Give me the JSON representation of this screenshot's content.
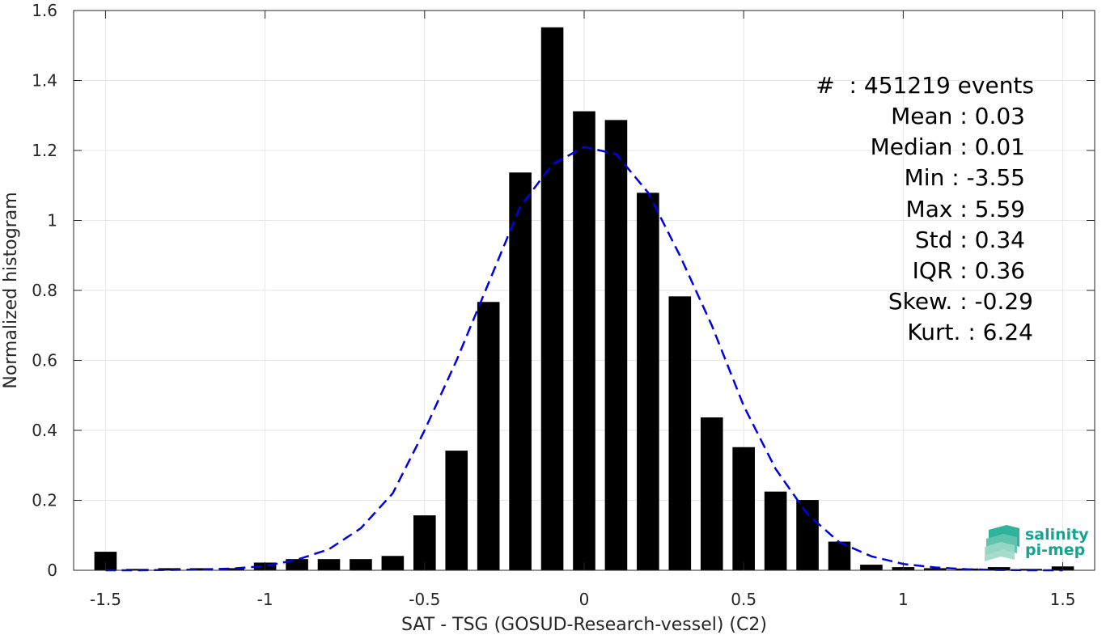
{
  "chart_data": {
    "type": "bar",
    "xlabel": "SAT - TSG (GOSUD-Research-vessel) (C2)",
    "ylabel": "Normalized histogram",
    "xlim": [
      -1.6,
      1.6
    ],
    "ylim": [
      0,
      1.6
    ],
    "grid": true,
    "x_ticks": [
      -1.5,
      -1,
      -0.5,
      0,
      0.5,
      1,
      1.5
    ],
    "x_tick_labels": [
      "-1.5",
      "-1",
      "-0.5",
      "0",
      "0.5",
      "1",
      "1.5"
    ],
    "y_ticks": [
      0,
      0.2,
      0.4,
      0.6,
      0.8,
      1,
      1.2,
      1.4,
      1.6
    ],
    "y_tick_labels": [
      "0",
      "0.2",
      "0.4",
      "0.6",
      "0.8",
      "1",
      "1.2",
      "1.4",
      "1.6"
    ],
    "bar_width": 0.07,
    "x": [
      -1.5,
      -1.4,
      -1.3,
      -1.2,
      -1.1,
      -1.0,
      -0.9,
      -0.8,
      -0.7,
      -0.6,
      -0.5,
      -0.4,
      -0.3,
      -0.2,
      -0.1,
      0.0,
      0.1,
      0.2,
      0.3,
      0.4,
      0.5,
      0.6,
      0.7,
      0.8,
      0.9,
      1.0,
      1.1,
      1.2,
      1.3,
      1.4,
      1.5
    ],
    "values": [
      0.053,
      0.004,
      0.006,
      0.006,
      0.006,
      0.022,
      0.032,
      0.032,
      0.032,
      0.041,
      0.157,
      0.342,
      0.767,
      1.137,
      1.552,
      1.312,
      1.287,
      1.079,
      0.783,
      0.437,
      0.352,
      0.225,
      0.201,
      0.082,
      0.016,
      0.009,
      0.006,
      0.005,
      0.009,
      0.004,
      0.011
    ],
    "bar_color": "#000000",
    "fit_curve": {
      "style": "dashed",
      "color": "#0000e6",
      "x": [
        -1.5,
        -1.4,
        -1.3,
        -1.2,
        -1.1,
        -1.0,
        -0.9,
        -0.8,
        -0.7,
        -0.6,
        -0.5,
        -0.4,
        -0.3,
        -0.2,
        -0.1,
        0.0,
        0.1,
        0.2,
        0.3,
        0.4,
        0.5,
        0.6,
        0.7,
        0.8,
        0.9,
        1.0,
        1.1,
        1.2,
        1.3,
        1.4,
        1.5
      ],
      "y": [
        0.0,
        0.0,
        0.001,
        0.002,
        0.005,
        0.012,
        0.03,
        0.06,
        0.12,
        0.22,
        0.4,
        0.6,
        0.82,
        1.04,
        1.16,
        1.21,
        1.19,
        1.08,
        0.9,
        0.7,
        0.47,
        0.29,
        0.16,
        0.08,
        0.04,
        0.018,
        0.008,
        0.003,
        0.001,
        0.0,
        0.0
      ]
    }
  },
  "stats": {
    "line1": "#  : 451219 events",
    "line2": "Mean : 0.03",
    "line3": "Median : 0.01",
    "line4": "Min : -3.55",
    "line5": "Max : 5.59",
    "line6": "Std : 0.34",
    "line7": "IQR : 0.36",
    "line8": "Skew. : -0.29",
    "line9": "Kurt. : 6.24"
  },
  "logo": {
    "line1": "salinity",
    "line2": "pi-mep"
  }
}
